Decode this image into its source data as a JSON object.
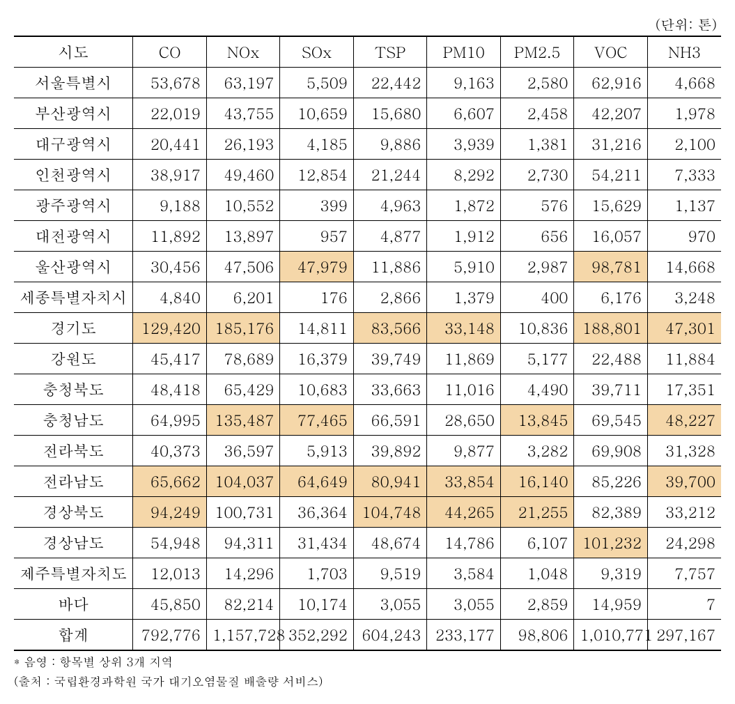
{
  "unit_label": "(단위: 톤)",
  "columns": [
    "시도",
    "CO",
    "NOx",
    "SOx",
    "TSP",
    "PM10",
    "PM2.5",
    "VOC",
    "NH3"
  ],
  "highlight_color": "#f5d7a9",
  "rows": [
    {
      "cells": [
        "서울특별시",
        "53,678",
        "63,197",
        "5,509",
        "22,442",
        "9,163",
        "2,580",
        "62,916",
        "4,668"
      ],
      "hl": []
    },
    {
      "cells": [
        "부산광역시",
        "22,019",
        "43,755",
        "10,659",
        "15,680",
        "6,607",
        "2,458",
        "42,207",
        "1,978"
      ],
      "hl": []
    },
    {
      "cells": [
        "대구광역시",
        "20,441",
        "26,193",
        "4,185",
        "9,886",
        "3,939",
        "1,381",
        "31,216",
        "2,100"
      ],
      "hl": []
    },
    {
      "cells": [
        "인천광역시",
        "38,917",
        "49,460",
        "12,854",
        "21,244",
        "8,292",
        "2,730",
        "54,211",
        "7,333"
      ],
      "hl": []
    },
    {
      "cells": [
        "광주광역시",
        "9,188",
        "10,552",
        "399",
        "4,963",
        "1,872",
        "576",
        "15,629",
        "1,137"
      ],
      "hl": []
    },
    {
      "cells": [
        "대전광역시",
        "11,892",
        "13,897",
        "957",
        "4,877",
        "1,912",
        "656",
        "16,057",
        "970"
      ],
      "hl": []
    },
    {
      "cells": [
        "울산광역시",
        "30,456",
        "47,506",
        "47,979",
        "11,886",
        "5,910",
        "2,987",
        "98,781",
        "14,668"
      ],
      "hl": [
        3,
        7
      ]
    },
    {
      "cells": [
        "세종특별자치시",
        "4,840",
        "6,201",
        "176",
        "2,866",
        "1,379",
        "400",
        "6,176",
        "3,248"
      ],
      "hl": []
    },
    {
      "cells": [
        "경기도",
        "129,420",
        "185,176",
        "14,811",
        "83,566",
        "33,148",
        "10,836",
        "188,801",
        "47,301"
      ],
      "hl": [
        1,
        2,
        4,
        5,
        7,
        8
      ]
    },
    {
      "cells": [
        "강원도",
        "45,417",
        "78,689",
        "16,379",
        "39,749",
        "11,869",
        "5,177",
        "22,488",
        "11,884"
      ],
      "hl": []
    },
    {
      "cells": [
        "충청북도",
        "48,418",
        "65,429",
        "10,683",
        "33,663",
        "11,016",
        "4,490",
        "39,711",
        "17,351"
      ],
      "hl": []
    },
    {
      "cells": [
        "충청남도",
        "64,995",
        "135,487",
        "77,465",
        "66,591",
        "28,650",
        "13,845",
        "69,545",
        "48,227"
      ],
      "hl": [
        2,
        3,
        6,
        8
      ]
    },
    {
      "cells": [
        "전라북도",
        "40,373",
        "36,597",
        "5,913",
        "39,892",
        "9,877",
        "3,282",
        "69,908",
        "31,328"
      ],
      "hl": []
    },
    {
      "cells": [
        "전라남도",
        "65,662",
        "104,037",
        "64,649",
        "80,941",
        "33,854",
        "16,140",
        "85,226",
        "39,700"
      ],
      "hl": [
        1,
        2,
        3,
        4,
        5,
        6,
        8
      ]
    },
    {
      "cells": [
        "경상북도",
        "94,249",
        "100,731",
        "36,364",
        "104,748",
        "44,265",
        "21,255",
        "82,389",
        "33,212"
      ],
      "hl": [
        1,
        4,
        5,
        6
      ]
    },
    {
      "cells": [
        "경상남도",
        "54,948",
        "94,311",
        "31,434",
        "48,674",
        "14,786",
        "6,107",
        "101,232",
        "24,298"
      ],
      "hl": [
        7
      ]
    },
    {
      "cells": [
        "제주특별자치도",
        "12,013",
        "14,296",
        "1,703",
        "9,519",
        "3,584",
        "1,048",
        "9,319",
        "7,757"
      ],
      "hl": []
    },
    {
      "cells": [
        "바다",
        "45,850",
        "82,214",
        "10,174",
        "3,055",
        "3,055",
        "2,859",
        "14,959",
        "7"
      ],
      "hl": []
    },
    {
      "cells": [
        "합계",
        "792,776",
        "1,157,728",
        "352,292",
        "604,243",
        "233,177",
        "98,806",
        "1,010,771",
        "297,167"
      ],
      "hl": []
    }
  ],
  "footnote1": "* 음영 : 항목별 상위 3개 지역",
  "footnote2": "(출처 : 국립환경과학원 국가 대기오염물질 배출량 서비스)"
}
